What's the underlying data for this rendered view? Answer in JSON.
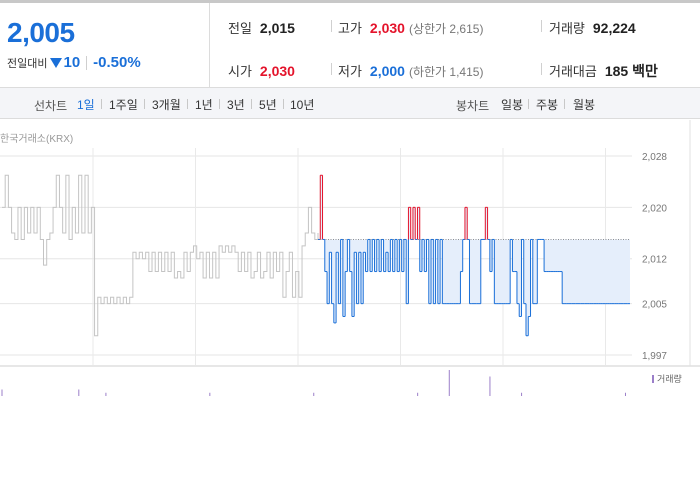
{
  "summary": {
    "current_price": "2,005",
    "change_label": "전일대비",
    "change_amount": "10",
    "change_percent": "-0.50%",
    "prev_close": {
      "label": "전일",
      "value": "2,015"
    },
    "open": {
      "label": "시가",
      "value": "2,030"
    },
    "high": {
      "label": "고가",
      "value": "2,030",
      "limit": "(상한가 2,615)"
    },
    "low": {
      "label": "저가",
      "value": "2,000",
      "limit": "(하한가 1,415)"
    },
    "volume": {
      "label": "거래량",
      "value": "92,224"
    },
    "amount": {
      "label": "거래대금",
      "value": "185 백만"
    }
  },
  "toolbar": {
    "line_label": "선차트",
    "line_tabs": [
      "1일",
      "1주일",
      "3개월",
      "1년",
      "3년",
      "5년",
      "10년"
    ],
    "active_line_tab": "1일",
    "candle_label": "봉차트",
    "candle_tabs": [
      "일봉",
      "주봉",
      "월봉"
    ]
  },
  "chart": {
    "source_label": "한국거래소(KRX)",
    "volume_label": "거래량",
    "colors": {
      "up": "#e4132b",
      "down": "#1a6fd8",
      "history": "#c4c4c4",
      "fill": "#e5eefb",
      "volume": "#9b7fc9"
    }
  },
  "chart_data": {
    "type": "line",
    "y_ticks": [
      "2,028",
      "2,020",
      "2,012",
      "2,005",
      "1,997"
    ],
    "y_tick_values": [
      2028,
      2020,
      2012,
      2005,
      1997
    ],
    "ylim": [
      1997,
      2028
    ],
    "baseline": 2015,
    "history_series": {
      "name": "",
      "values": [
        2020,
        2025,
        2020,
        2016,
        2015,
        2020,
        2015,
        2020,
        2016,
        2020,
        2016,
        2020,
        2015,
        2011,
        2015,
        2016,
        2020,
        2025,
        2020,
        2016,
        2025,
        2015,
        2020,
        2016,
        2025,
        2016,
        2025,
        2016,
        2020,
        2000,
        2006,
        2005,
        2006,
        2005,
        2006,
        2005,
        2006,
        2005,
        2006,
        2005,
        2006,
        2013,
        2012,
        2013,
        2012,
        2013,
        2010,
        2013,
        2010,
        2013,
        2010,
        2013,
        2010,
        2013,
        2009,
        2010,
        2009,
        2013,
        2010,
        2013,
        2014,
        2012,
        2013,
        2009,
        2013,
        2009,
        2013,
        2009,
        2014,
        2013,
        2014,
        2013,
        2014,
        2013,
        2010,
        2013,
        2010,
        2013,
        2009,
        2010,
        2013,
        2009,
        2010,
        2013,
        2009,
        2013,
        2010,
        2013,
        2006,
        2010,
        2013,
        2006,
        2010,
        2006,
        2014,
        2016,
        2020,
        2016,
        2015,
        2016
      ]
    },
    "today_series": {
      "name": "",
      "values": [
        2015,
        2025,
        2015,
        2010,
        2005,
        2013,
        2005,
        2002,
        2013,
        2005,
        2015,
        2003,
        2010,
        2015,
        2010,
        2003,
        2013,
        2005,
        2013,
        2005,
        2013,
        2010,
        2015,
        2010,
        2015,
        2010,
        2015,
        2010,
        2015,
        2010,
        2013,
        2010,
        2015,
        2010,
        2015,
        2010,
        2015,
        2010,
        2015,
        2005,
        2020,
        2015,
        2020,
        2015,
        2020,
        2010,
        2015,
        2010,
        2015,
        2005,
        2015,
        2005,
        2015,
        2005,
        2015,
        2005,
        2005,
        2005,
        2005,
        2005,
        2005,
        2005,
        2005,
        2010,
        2015,
        2020,
        2015,
        2005,
        2005,
        2005,
        2005,
        2005,
        2015,
        2015,
        2020,
        2015,
        2010,
        2015,
        2005,
        2005,
        2005,
        2005,
        2005,
        2005,
        2005,
        2015,
        2010,
        2010,
        2005,
        2003,
        2015,
        2005,
        2000,
        2003,
        2015,
        2005,
        2005,
        2015,
        2015,
        2015,
        2010,
        2010,
        2010,
        2010,
        2010,
        2010,
        2010,
        2010,
        2005,
        2005,
        2005,
        2005,
        2005,
        2005,
        2005,
        2005,
        2005,
        2005,
        2005,
        2005,
        2005,
        2005,
        2005,
        2005,
        2005,
        2005,
        2005,
        2005,
        2005,
        2005,
        2005,
        2005,
        2005,
        2005,
        2005,
        2005,
        2005,
        2005,
        2005
      ]
    },
    "volume_values": [
      2,
      1,
      1,
      1,
      1,
      1,
      1,
      1,
      1,
      1,
      1,
      1,
      1,
      1,
      1,
      1,
      1,
      2,
      1,
      1,
      1,
      1,
      1,
      1,
      1,
      1,
      1,
      1,
      1,
      1,
      1,
      1,
      1,
      1,
      1,
      1,
      1,
      1,
      1,
      1,
      1,
      1,
      1,
      1,
      1,
      1,
      1,
      1,
      1,
      1,
      1,
      1,
      1,
      1,
      1,
      1,
      1,
      1,
      1,
      1,
      1,
      1,
      1,
      1,
      1,
      1,
      1,
      1,
      1,
      1,
      1,
      1,
      1,
      1,
      1,
      1,
      1,
      1,
      1,
      1,
      1,
      1,
      1,
      1,
      1,
      1,
      1,
      1,
      1,
      1,
      1,
      1,
      1,
      1,
      1,
      1,
      1,
      1,
      1,
      8,
      1,
      1,
      1,
      1,
      1,
      1,
      1,
      1,
      6,
      1,
      1,
      1,
      1,
      1,
      1,
      1,
      1,
      1,
      1,
      1,
      1,
      1,
      1,
      1,
      1,
      1,
      1,
      1,
      1,
      1,
      1,
      1,
      1,
      1,
      1,
      1,
      1,
      1,
      1,
      1
    ]
  }
}
